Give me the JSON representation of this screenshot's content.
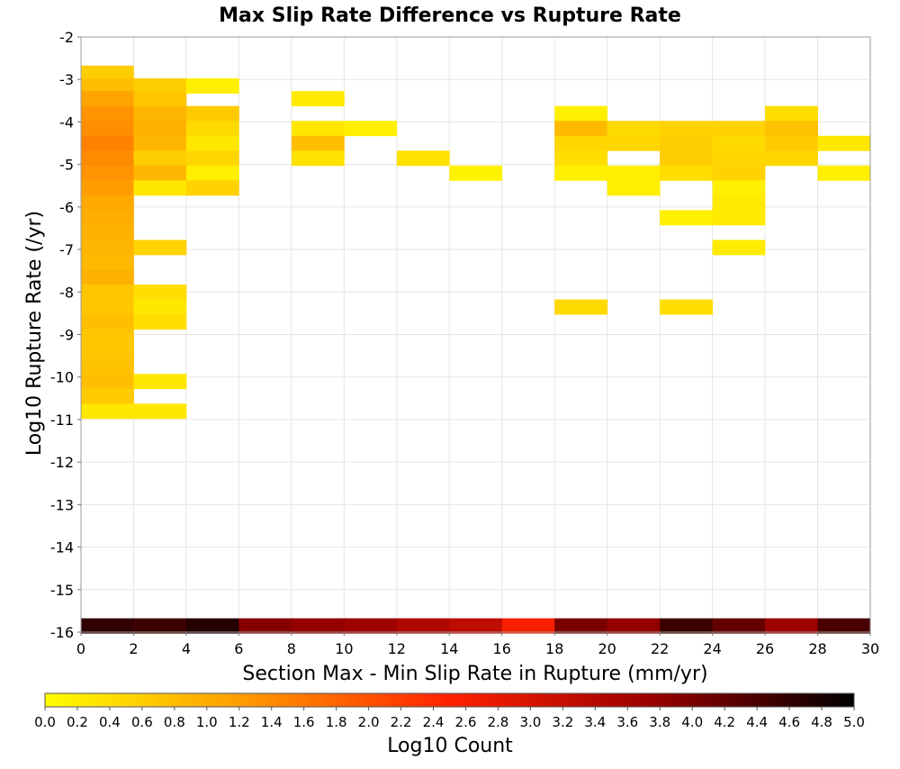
{
  "chart_data": {
    "type": "heatmap",
    "title": "Max Slip Rate Difference vs Rupture Rate",
    "xlabel": "Section Max - Min Slip Rate in Rupture (mm/yr)",
    "ylabel": "Log10 Rupture Rate (/yr)",
    "xlim": [
      0,
      30
    ],
    "ylim": [
      -16,
      -2
    ],
    "x_ticks": [
      "0",
      "2",
      "4",
      "6",
      "8",
      "10",
      "12",
      "14",
      "16",
      "18",
      "20",
      "22",
      "24",
      "26",
      "28",
      "30"
    ],
    "y_ticks": [
      "-2",
      "-3",
      "-4",
      "-5",
      "-6",
      "-7",
      "-8",
      "-9",
      "-10",
      "-11",
      "-12",
      "-13",
      "-14",
      "-15",
      "-16"
    ],
    "grid": true,
    "bin_width_x": 2,
    "bin_height_y": 0.35,
    "colorbar": {
      "label": "Log10 Count",
      "range": [
        0,
        5
      ],
      "ticks": [
        "0.0",
        "0.2",
        "0.4",
        "0.6",
        "0.8",
        "1.0",
        "1.2",
        "1.4",
        "1.6",
        "1.8",
        "2.0",
        "2.2",
        "2.4",
        "2.6",
        "2.8",
        "3.0",
        "3.2",
        "3.4",
        "3.6",
        "3.8",
        "4.0",
        "4.2",
        "4.4",
        "4.6",
        "4.8",
        "5.0"
      ],
      "colormap": [
        "#ffff00",
        "#ff9900",
        "#ff2200",
        "#990000",
        "#000000"
      ]
    },
    "cells": [
      {
        "x": 0,
        "y": -2.85,
        "v": 0.6
      },
      {
        "x": 0,
        "y": -3.15,
        "v": 0.8
      },
      {
        "x": 0,
        "y": -3.45,
        "v": 1.1
      },
      {
        "x": 0,
        "y": -3.8,
        "v": 1.3
      },
      {
        "x": 0,
        "y": -4.15,
        "v": 1.35
      },
      {
        "x": 0,
        "y": -4.5,
        "v": 1.5
      },
      {
        "x": 0,
        "y": -4.85,
        "v": 1.4
      },
      {
        "x": 0,
        "y": -5.2,
        "v": 1.3
      },
      {
        "x": 0,
        "y": -5.55,
        "v": 1.2
      },
      {
        "x": 0,
        "y": -5.9,
        "v": 1.05
      },
      {
        "x": 0,
        "y": -6.25,
        "v": 1.0
      },
      {
        "x": 0,
        "y": -6.6,
        "v": 0.95
      },
      {
        "x": 0,
        "y": -6.95,
        "v": 0.9
      },
      {
        "x": 0,
        "y": -7.3,
        "v": 0.85
      },
      {
        "x": 0,
        "y": -7.65,
        "v": 0.95
      },
      {
        "x": 0,
        "y": -8.0,
        "v": 0.7
      },
      {
        "x": 0,
        "y": -8.35,
        "v": 0.7
      },
      {
        "x": 0,
        "y": -8.7,
        "v": 0.8
      },
      {
        "x": 0,
        "y": -9.05,
        "v": 0.7
      },
      {
        "x": 0,
        "y": -9.4,
        "v": 0.7
      },
      {
        "x": 0,
        "y": -9.75,
        "v": 0.75
      },
      {
        "x": 0,
        "y": -10.1,
        "v": 0.8
      },
      {
        "x": 0,
        "y": -10.45,
        "v": 0.65
      },
      {
        "x": 0,
        "y": -10.8,
        "v": 0.3
      },
      {
        "x": 2,
        "y": -3.15,
        "v": 0.6
      },
      {
        "x": 2,
        "y": -3.45,
        "v": 0.7
      },
      {
        "x": 2,
        "y": -3.8,
        "v": 0.9
      },
      {
        "x": 2,
        "y": -4.15,
        "v": 0.95
      },
      {
        "x": 2,
        "y": -4.5,
        "v": 0.9
      },
      {
        "x": 2,
        "y": -4.85,
        "v": 0.6
      },
      {
        "x": 2,
        "y": -5.2,
        "v": 0.9
      },
      {
        "x": 2,
        "y": -5.55,
        "v": 0.3
      },
      {
        "x": 2,
        "y": -6.95,
        "v": 0.55
      },
      {
        "x": 2,
        "y": -8.0,
        "v": 0.4
      },
      {
        "x": 2,
        "y": -8.35,
        "v": 0.3
      },
      {
        "x": 2,
        "y": -8.7,
        "v": 0.4
      },
      {
        "x": 2,
        "y": -10.1,
        "v": 0.3
      },
      {
        "x": 2,
        "y": -10.8,
        "v": 0.3
      },
      {
        "x": 4,
        "y": -3.15,
        "v": 0.2
      },
      {
        "x": 4,
        "y": -3.8,
        "v": 0.65
      },
      {
        "x": 4,
        "y": -4.15,
        "v": 0.45
      },
      {
        "x": 4,
        "y": -4.5,
        "v": 0.3
      },
      {
        "x": 4,
        "y": -4.85,
        "v": 0.5
      },
      {
        "x": 4,
        "y": -5.2,
        "v": 0.2
      },
      {
        "x": 4,
        "y": -5.55,
        "v": 0.55
      },
      {
        "x": 8,
        "y": -3.45,
        "v": 0.25
      },
      {
        "x": 8,
        "y": -4.15,
        "v": 0.3
      },
      {
        "x": 8,
        "y": -4.5,
        "v": 0.8
      },
      {
        "x": 8,
        "y": -4.85,
        "v": 0.35
      },
      {
        "x": 10,
        "y": -4.15,
        "v": 0.2
      },
      {
        "x": 12,
        "y": -4.85,
        "v": 0.35
      },
      {
        "x": 14,
        "y": -5.2,
        "v": 0.15
      },
      {
        "x": 18,
        "y": -3.8,
        "v": 0.2
      },
      {
        "x": 18,
        "y": -4.15,
        "v": 0.85
      },
      {
        "x": 18,
        "y": -4.5,
        "v": 0.5
      },
      {
        "x": 18,
        "y": -4.85,
        "v": 0.4
      },
      {
        "x": 18,
        "y": -5.2,
        "v": 0.2
      },
      {
        "x": 18,
        "y": -8.35,
        "v": 0.45
      },
      {
        "x": 20,
        "y": -4.15,
        "v": 0.45
      },
      {
        "x": 20,
        "y": -4.5,
        "v": 0.5
      },
      {
        "x": 20,
        "y": -5.2,
        "v": 0.2
      },
      {
        "x": 20,
        "y": -5.55,
        "v": 0.2
      },
      {
        "x": 22,
        "y": -4.15,
        "v": 0.55
      },
      {
        "x": 22,
        "y": -4.5,
        "v": 0.6
      },
      {
        "x": 22,
        "y": -4.85,
        "v": 0.6
      },
      {
        "x": 22,
        "y": -5.2,
        "v": 0.4
      },
      {
        "x": 22,
        "y": -6.25,
        "v": 0.2
      },
      {
        "x": 22,
        "y": -8.35,
        "v": 0.4
      },
      {
        "x": 24,
        "y": -4.15,
        "v": 0.55
      },
      {
        "x": 24,
        "y": -4.5,
        "v": 0.45
      },
      {
        "x": 24,
        "y": -4.85,
        "v": 0.5
      },
      {
        "x": 24,
        "y": -5.2,
        "v": 0.55
      },
      {
        "x": 24,
        "y": -5.55,
        "v": 0.2
      },
      {
        "x": 24,
        "y": -5.9,
        "v": 0.25
      },
      {
        "x": 24,
        "y": -6.25,
        "v": 0.25
      },
      {
        "x": 24,
        "y": -6.95,
        "v": 0.25
      },
      {
        "x": 26,
        "y": -3.8,
        "v": 0.4
      },
      {
        "x": 26,
        "y": -4.15,
        "v": 0.75
      },
      {
        "x": 26,
        "y": -4.5,
        "v": 0.65
      },
      {
        "x": 26,
        "y": -4.85,
        "v": 0.5
      },
      {
        "x": 28,
        "y": -4.5,
        "v": 0.3
      },
      {
        "x": 28,
        "y": -5.2,
        "v": 0.2
      },
      {
        "x": 0,
        "y": -15.85,
        "v": 4.6
      },
      {
        "x": 2,
        "y": -15.85,
        "v": 4.5
      },
      {
        "x": 4,
        "y": -15.85,
        "v": 4.7
      },
      {
        "x": 6,
        "y": -15.85,
        "v": 3.9
      },
      {
        "x": 8,
        "y": -15.85,
        "v": 3.8
      },
      {
        "x": 10,
        "y": -15.85,
        "v": 3.7
      },
      {
        "x": 12,
        "y": -15.85,
        "v": 3.5
      },
      {
        "x": 14,
        "y": -15.85,
        "v": 3.3
      },
      {
        "x": 16,
        "y": -15.85,
        "v": 2.6
      },
      {
        "x": 18,
        "y": -15.85,
        "v": 4.0
      },
      {
        "x": 20,
        "y": -15.85,
        "v": 3.8
      },
      {
        "x": 22,
        "y": -15.85,
        "v": 4.5
      },
      {
        "x": 24,
        "y": -15.85,
        "v": 4.2
      },
      {
        "x": 26,
        "y": -15.85,
        "v": 3.7
      },
      {
        "x": 28,
        "y": -15.85,
        "v": 4.4
      }
    ]
  }
}
